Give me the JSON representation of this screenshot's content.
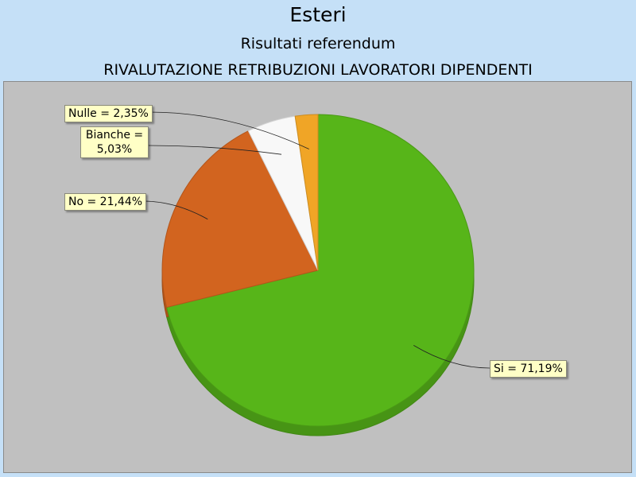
{
  "header": {
    "title": "Esteri",
    "subtitle": "Risultati referendum",
    "question": "RIVALUTAZIONE RETRIBUZIONI LAVORATORI DIPENDENTI"
  },
  "chart_data": {
    "type": "pie",
    "title": "Esteri",
    "subtitle": "Risultati referendum — RIVALUTAZIONE RETRIBUZIONI LAVORATORI DIPENDENTI",
    "start_angle_deg": 0,
    "direction": "clockwise",
    "slices": [
      {
        "name": "Si",
        "value": 71.19,
        "color": "#57b519",
        "label": "Si = 71,19%"
      },
      {
        "name": "No",
        "value": 21.44,
        "color": "#d2641f",
        "label": "No = 21,44%"
      },
      {
        "name": "Bianche",
        "value": 5.03,
        "color": "#f8f8f8",
        "label_line1": "Bianche =",
        "label_line2": "5,03%"
      },
      {
        "name": "Nulle",
        "value": 2.35,
        "color": "#f0a526",
        "label": "Nulle = 2,35%"
      }
    ],
    "legend": "none",
    "style": "3d-tilted"
  }
}
